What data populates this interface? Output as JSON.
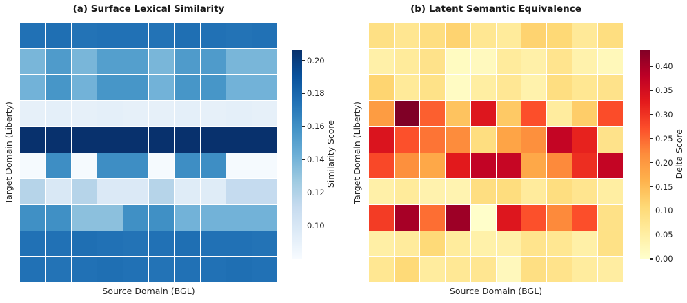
{
  "figure": {
    "background": "#ffffff"
  },
  "chart_data": [
    {
      "type": "heatmap",
      "title": "(a) Surface Lexical Similarity",
      "xlabel": "Source Domain (BGL)",
      "ylabel": "Target Domain (Liberty)",
      "colorbar_label": "Similarity Score",
      "colormap": "Blues",
      "colormap_stops": [
        "#f7fbff",
        "#deebf7",
        "#c6dbef",
        "#9ecae1",
        "#6baed6",
        "#4292c6",
        "#2171b5",
        "#08519c",
        "#08306b"
      ],
      "vmin": 0.08,
      "vmax": 0.2065,
      "colorbar_ticks": [
        "0.20",
        "0.18",
        "0.16",
        "0.14",
        "0.12",
        "0.10"
      ],
      "grid_shape": [
        10,
        10
      ],
      "grid_on": false,
      "legend": "colorbar-right",
      "values": [
        [
          0.175,
          0.176,
          0.174,
          0.175,
          0.175,
          0.174,
          0.176,
          0.175,
          0.174,
          0.175
        ],
        [
          0.139,
          0.154,
          0.139,
          0.152,
          0.152,
          0.139,
          0.154,
          0.154,
          0.139,
          0.139
        ],
        [
          0.141,
          0.157,
          0.141,
          0.157,
          0.157,
          0.141,
          0.157,
          0.157,
          0.141,
          0.141
        ],
        [
          0.091,
          0.092,
          0.091,
          0.092,
          0.091,
          0.091,
          0.092,
          0.091,
          0.092,
          0.091
        ],
        [
          0.206,
          0.206,
          0.206,
          0.206,
          0.206,
          0.206,
          0.206,
          0.206,
          0.206,
          0.206
        ],
        [
          0.081,
          0.161,
          0.081,
          0.161,
          0.161,
          0.081,
          0.161,
          0.161,
          0.081,
          0.081
        ],
        [
          0.118,
          0.099,
          0.118,
          0.098,
          0.098,
          0.118,
          0.095,
          0.095,
          0.112,
          0.112
        ],
        [
          0.16,
          0.16,
          0.133,
          0.133,
          0.16,
          0.16,
          0.141,
          0.141,
          0.141,
          0.141
        ],
        [
          0.175,
          0.175,
          0.176,
          0.175,
          0.174,
          0.175,
          0.176,
          0.175,
          0.175,
          0.174
        ],
        [
          0.175,
          0.174,
          0.175,
          0.176,
          0.175,
          0.174,
          0.175,
          0.175,
          0.176,
          0.175
        ]
      ]
    },
    {
      "type": "heatmap",
      "title": "(b) Latent Semantic Equivalence",
      "xlabel": "Source Domain (BGL)",
      "ylabel": "Target Domain (Liberty)",
      "colorbar_label": "Delta Score",
      "colormap": "YlOrRd",
      "colormap_stops": [
        "#ffffcc",
        "#ffeda0",
        "#fed976",
        "#feb24c",
        "#fd8d3c",
        "#fc4e2a",
        "#e31a1c",
        "#bd0026",
        "#800026"
      ],
      "vmin": 0.0,
      "vmax": 0.435,
      "colorbar_ticks": [
        "0.40",
        "0.35",
        "0.30",
        "0.25",
        "0.20",
        "0.15",
        "0.10",
        "0.05",
        "0.00"
      ],
      "grid_shape": [
        10,
        10
      ],
      "grid_on": false,
      "legend": "colorbar-right",
      "values": [
        [
          0.091,
          0.074,
          0.094,
          0.117,
          0.072,
          0.061,
          0.117,
          0.109,
          0.065,
          0.096
        ],
        [
          0.044,
          0.061,
          0.083,
          0.013,
          0.017,
          0.059,
          0.044,
          0.078,
          0.039,
          0.022
        ],
        [
          0.115,
          0.063,
          0.085,
          0.011,
          0.052,
          0.07,
          0.04,
          0.094,
          0.072,
          0.083
        ],
        [
          0.196,
          0.435,
          0.257,
          0.139,
          0.335,
          0.131,
          0.272,
          0.057,
          0.126,
          0.274
        ],
        [
          0.339,
          0.27,
          0.239,
          0.218,
          0.096,
          0.183,
          0.213,
          0.37,
          0.318,
          0.083
        ],
        [
          0.278,
          0.213,
          0.178,
          0.328,
          0.374,
          0.368,
          0.178,
          0.22,
          0.305,
          0.37
        ],
        [
          0.044,
          0.061,
          0.038,
          0.035,
          0.095,
          0.098,
          0.06,
          0.096,
          0.077,
          0.052
        ],
        [
          0.291,
          0.4,
          0.244,
          0.409,
          0.002,
          0.335,
          0.27,
          0.22,
          0.272,
          0.087
        ],
        [
          0.048,
          0.059,
          0.106,
          0.058,
          0.043,
          0.044,
          0.079,
          0.072,
          0.046,
          0.088
        ],
        [
          0.072,
          0.106,
          0.057,
          0.068,
          0.074,
          0.02,
          0.092,
          0.081,
          0.057,
          0.053
        ]
      ]
    }
  ]
}
